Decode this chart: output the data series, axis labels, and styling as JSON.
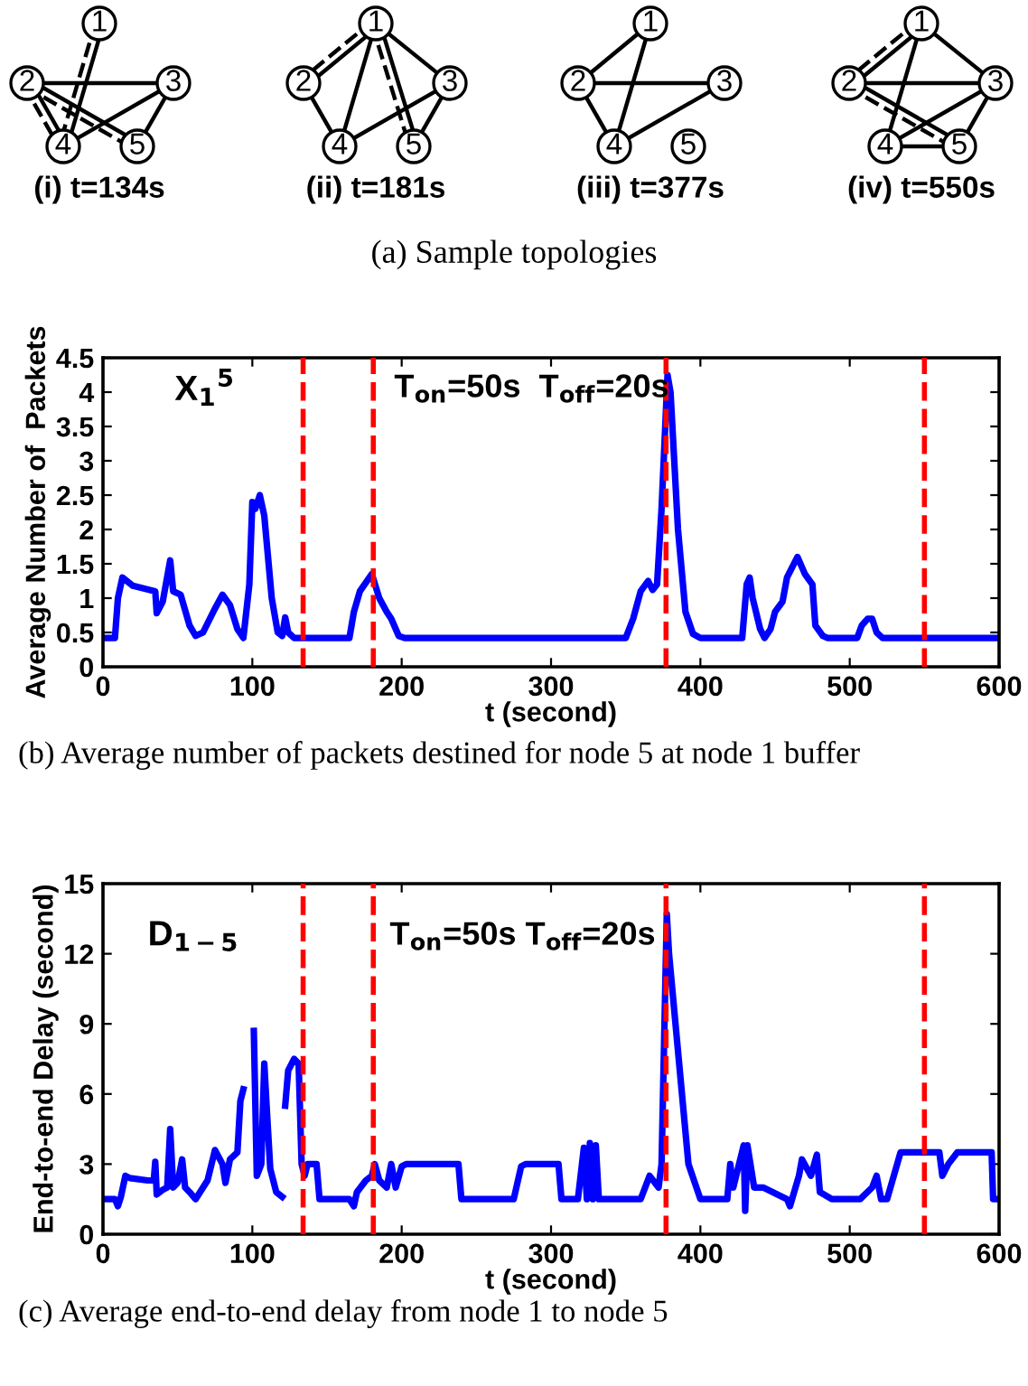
{
  "chart_data": [
    {
      "type": "other",
      "title": "(a) Sample topologies",
      "annotations": [
        "(i) t=134s",
        "(ii) t=181s",
        "(iii) t=377s",
        "(iv) t=550s",
        "1",
        "2",
        "3",
        "4",
        "5",
        "1",
        "2",
        "3",
        "4",
        "5",
        "1",
        "2",
        "3",
        "4",
        "5",
        "1",
        "2",
        "3",
        "4",
        "5"
      ]
    },
    {
      "type": "line",
      "title": "(b) Average number of packets destined for node 5 at node 1 buffer",
      "xlabel": "t (second)",
      "ylabel": "Average Number of  Packets",
      "xlim": [
        0,
        600
      ],
      "xticks": [
        0,
        100,
        200,
        300,
        400,
        500,
        600
      ],
      "ylim": [
        0,
        4.5
      ],
      "yticks": [
        0,
        0.5,
        1,
        1.5,
        2,
        2.5,
        3,
        3.5,
        4,
        4.5
      ],
      "grid": false,
      "line_style": "solid",
      "marker": "none",
      "annotations": [
        "X$_{1}$$^{5}$",
        "T$_{on}$=50s  T$_{off}$=20s"
      ],
      "ref_lines": [
        {
          "axis": "x",
          "value": 134,
          "color": "#ff0000",
          "line_style": "dashed"
        },
        {
          "axis": "x",
          "value": 181,
          "color": "#ff0000",
          "line_style": "dashed"
        },
        {
          "axis": "x",
          "value": 377,
          "color": "#ff0000",
          "line_style": "dashed"
        },
        {
          "axis": "x",
          "value": 550,
          "color": "#ff0000",
          "line_style": "dashed"
        }
      ],
      "series": [
        {
          "color": "#0000ff",
          "x": [
            0,
            8,
            10,
            13,
            20,
            35,
            36,
            40,
            45,
            47,
            52,
            58,
            62,
            67,
            75,
            80,
            85,
            90,
            94,
            98,
            100,
            102,
            105,
            108,
            113,
            117,
            120,
            122,
            124,
            128,
            138,
            165,
            168,
            172,
            180,
            185,
            190,
            193,
            198,
            202,
            350,
            355,
            360,
            365,
            368,
            371,
            374,
            378,
            380,
            385,
            390,
            395,
            400,
            428,
            431,
            433,
            435,
            440,
            443,
            447,
            450,
            455,
            458,
            465,
            470,
            475,
            477,
            482,
            485,
            505,
            508,
            512,
            515,
            518,
            522,
            600
          ],
          "values": [
            0.42,
            0.42,
            1.0,
            1.3,
            1.18,
            1.1,
            0.78,
            0.95,
            1.55,
            1.1,
            1.05,
            0.6,
            0.45,
            0.5,
            0.85,
            1.05,
            0.9,
            0.55,
            0.42,
            1.2,
            2.4,
            2.3,
            2.5,
            2.2,
            1.0,
            0.5,
            0.45,
            0.72,
            0.5,
            0.42,
            0.42,
            0.42,
            0.8,
            1.1,
            1.35,
            1.0,
            0.8,
            0.7,
            0.45,
            0.42,
            0.42,
            0.7,
            1.1,
            1.25,
            1.12,
            1.2,
            2.3,
            4.25,
            4.0,
            2.0,
            0.8,
            0.48,
            0.42,
            0.42,
            1.2,
            1.3,
            1.0,
            0.55,
            0.42,
            0.55,
            0.8,
            0.95,
            1.3,
            1.6,
            1.35,
            1.2,
            0.6,
            0.45,
            0.42,
            0.42,
            0.6,
            0.7,
            0.7,
            0.5,
            0.42,
            0.42
          ]
        }
      ]
    },
    {
      "type": "line",
      "title": "(c) Average end-to-end delay from node 1 to node 5",
      "xlabel": "t (second)",
      "ylabel": "End-to-end Delay (second)",
      "xlim": [
        0,
        600
      ],
      "xticks": [
        0,
        100,
        200,
        300,
        400,
        500,
        600
      ],
      "ylim": [
        0,
        15
      ],
      "yticks": [
        0,
        3,
        6,
        9,
        12,
        15
      ],
      "grid": false,
      "line_style": "solid",
      "marker": "none",
      "annotations": [
        "D$_{1−5}$",
        "T$_{on}$=50s T$_{off}$=20s"
      ],
      "ref_lines": [
        {
          "axis": "x",
          "value": 134,
          "color": "#ff0000",
          "line_style": "dashed"
        },
        {
          "axis": "x",
          "value": 181,
          "color": "#ff0000",
          "line_style": "dashed"
        },
        {
          "axis": "x",
          "value": 377,
          "color": "#ff0000",
          "line_style": "dashed"
        },
        {
          "axis": "x",
          "value": 550,
          "color": "#ff0000",
          "line_style": "dashed"
        }
      ],
      "series": [
        {
          "color": "#0000ff",
          "x": [
            0,
            8,
            10,
            12,
            15,
            18,
            30,
            34,
            35,
            36,
            40,
            43,
            45,
            47,
            50,
            53,
            55,
            58,
            62,
            70,
            75,
            80,
            82,
            85,
            90,
            92,
            94,
            95,
            101,
            103,
            106,
            108,
            110,
            112,
            116,
            120,
            121,
            122,
            124,
            128,
            131,
            133,
            135,
            137,
            143,
            145,
            165,
            168,
            170,
            176,
            180,
            182,
            185,
            190,
            193,
            196,
            200,
            203,
            238,
            240,
            254,
            275,
            280,
            283,
            305,
            307,
            318,
            322,
            324,
            326,
            328,
            330,
            332,
            360,
            366,
            372,
            374,
            377.5,
            379,
            392,
            400,
            418,
            420,
            422,
            429,
            430,
            431.5,
            436,
            442,
            458,
            460,
            466,
            468,
            474,
            478,
            480,
            488,
            507,
            515,
            518,
            521,
            525,
            534,
            560,
            562,
            566,
            572,
            595,
            596,
            600
          ],
          "values": [
            1.5,
            1.5,
            1.2,
            1.6,
            2.5,
            2.4,
            2.3,
            2.3,
            3.1,
            1.7,
            1.9,
            2.0,
            4.5,
            2.0,
            2.2,
            3.2,
            2.0,
            1.8,
            1.5,
            2.3,
            3.6,
            3.0,
            2.2,
            3.2,
            3.5,
            5.7,
            6.2,
            null,
            8.7,
            2.5,
            3.0,
            7.3,
            5.0,
            2.8,
            1.8,
            1.6,
            null,
            5.5,
            7.0,
            7.5,
            7.3,
            3.0,
            2.5,
            3.0,
            3.0,
            1.5,
            1.5,
            1.2,
            1.8,
            2.3,
            2.5,
            3.0,
            2.3,
            2.0,
            3.0,
            2.0,
            2.9,
            3.0,
            3.0,
            1.5,
            1.5,
            1.5,
            2.9,
            3.0,
            3.0,
            1.5,
            1.5,
            3.7,
            1.5,
            3.9,
            1.5,
            3.8,
            1.5,
            1.5,
            2.5,
            2.0,
            3.0,
            13.7,
            12.0,
            3.0,
            1.5,
            1.5,
            3.0,
            2.0,
            3.8,
            1.0,
            3.8,
            2.0,
            2.0,
            1.5,
            1.2,
            2.5,
            3.2,
            2.5,
            3.4,
            1.8,
            1.5,
            1.5,
            2.0,
            2.5,
            1.5,
            1.5,
            3.5,
            3.5,
            2.5,
            3.0,
            3.5,
            3.5,
            1.5,
            1.5
          ]
        }
      ]
    }
  ]
}
